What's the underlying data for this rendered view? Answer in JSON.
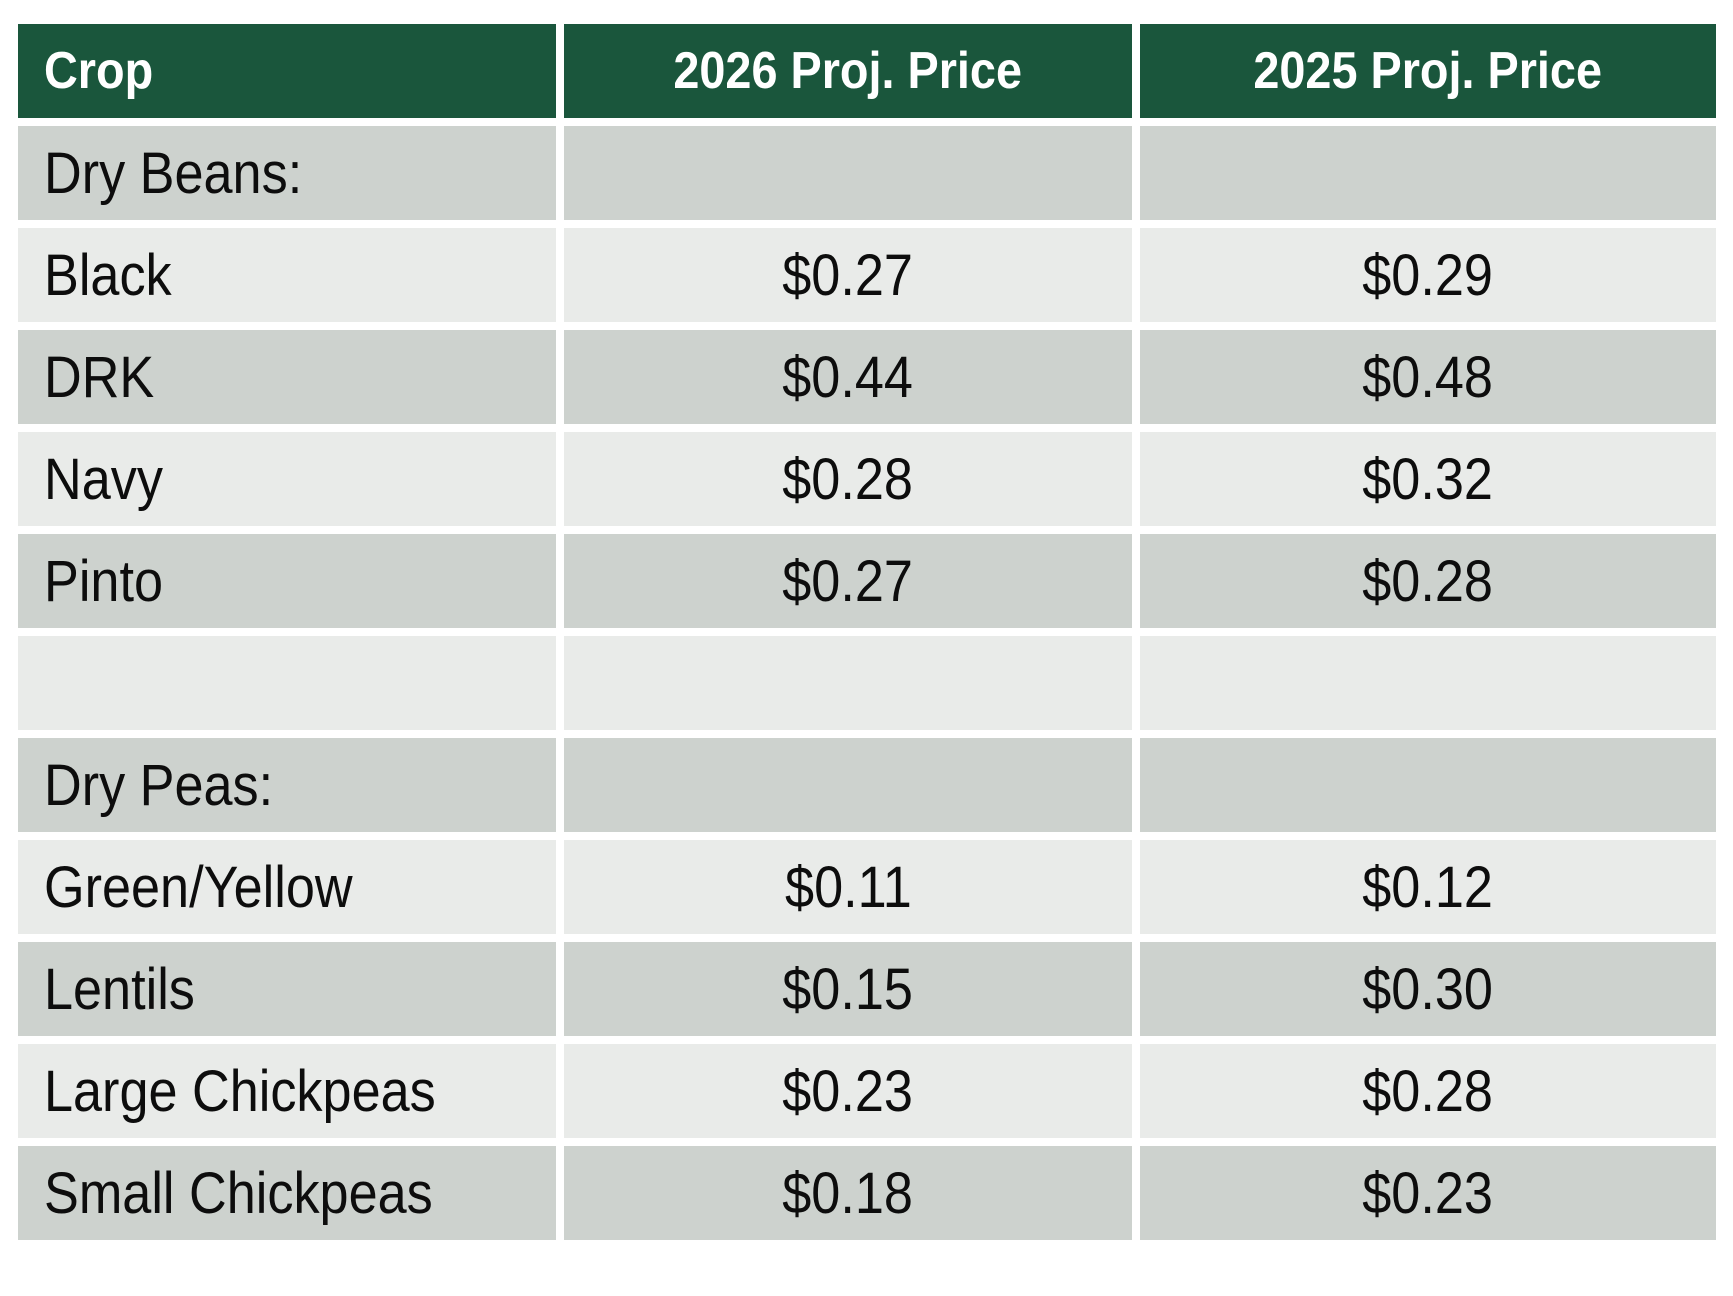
{
  "chart_data": {
    "type": "table",
    "columns": [
      "Crop",
      "2026 Proj. Price",
      "2025 Proj. Price"
    ],
    "rows": [
      {
        "crop": "Dry Beans:",
        "price_2026": "",
        "price_2025": ""
      },
      {
        "crop": "Black",
        "price_2026": "$0.27",
        "price_2025": "$0.29"
      },
      {
        "crop": "DRK",
        "price_2026": "$0.44",
        "price_2025": "$0.48"
      },
      {
        "crop": "Navy",
        "price_2026": "$0.28",
        "price_2025": "$0.32"
      },
      {
        "crop": "Pinto",
        "price_2026": "$0.27",
        "price_2025": "$0.28"
      },
      {
        "crop": "",
        "price_2026": "",
        "price_2025": ""
      },
      {
        "crop": "Dry Peas:",
        "price_2026": "",
        "price_2025": ""
      },
      {
        "crop": "Green/Yellow",
        "price_2026": "$0.11",
        "price_2025": "$0.12"
      },
      {
        "crop": "Lentils",
        "price_2026": "$0.15",
        "price_2025": "$0.30"
      },
      {
        "crop": "Large Chickpeas",
        "price_2026": "$0.23",
        "price_2025": "$0.28"
      },
      {
        "crop": "Small Chickpeas",
        "price_2026": "$0.18",
        "price_2025": "$0.23"
      }
    ],
    "layout": {
      "header_row": true,
      "banded_rows": true,
      "crop_column_align": "left",
      "price_columns_align": "center"
    }
  },
  "colors": {
    "page_bg": "#ffffff",
    "header_bg": "#1a563c",
    "header_text": "#ffffff",
    "row_dark": "#cdd2ce",
    "row_light": "#e9ebe9",
    "body_text": "#0d0d0d"
  }
}
